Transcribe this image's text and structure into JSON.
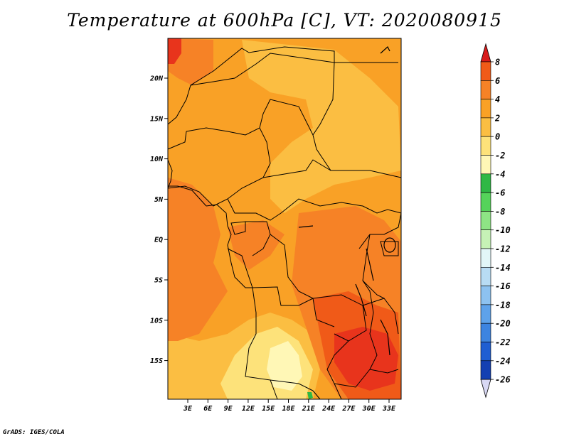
{
  "title": "Temperature at 600hPa [C], VT: 2020080915",
  "footer": "GrADS: IGES/COLA",
  "map": {
    "lat_labels": [
      "20N",
      "15N",
      "10N",
      "5N",
      "EQ",
      "5S",
      "10S",
      "15S"
    ],
    "lon_labels": [
      "3E",
      "6E",
      "9E",
      "12E",
      "15E",
      "18E",
      "21E",
      "24E",
      "27E",
      "30E",
      "33E"
    ]
  },
  "colorbar": {
    "labels": [
      "8",
      "6",
      "4",
      "2",
      "0",
      "-2",
      "-4",
      "-6",
      "-8",
      "-10",
      "-12",
      "-14",
      "-16",
      "-18",
      "-20",
      "-22",
      "-24",
      "-26"
    ],
    "colors": [
      "#e8341c",
      "#f05a18",
      "#f68226",
      "#f9a126",
      "#fbbe42",
      "#fde27a",
      "#fff7b6",
      "#2fb845",
      "#55d35a",
      "#8ee485",
      "#c6f2b6",
      "#e2f6f8",
      "#b8dcf4",
      "#8dc2f0",
      "#5ea2ea",
      "#3d84e0",
      "#1f5ed2",
      "#1440b2",
      "#0a1e78",
      "#d8d8f4"
    ],
    "top_arrow_color": "#d81a1a",
    "bottom_arrow_color": "#d8d8f4"
  },
  "field_colors": {
    "warm1": "#f9a126",
    "warm2": "#f68226",
    "warm3": "#f05a18",
    "hot": "#e8341c",
    "mild1": "#fbbe42",
    "mild2": "#fde27a",
    "cool": "#fff7b6",
    "green": "#2fb845"
  }
}
